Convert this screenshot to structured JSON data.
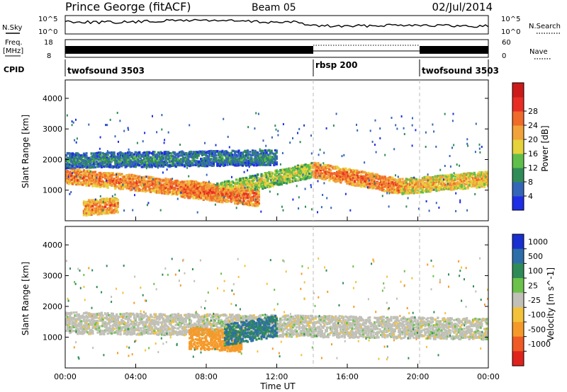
{
  "header": {
    "title": "Prince George (fitACF)",
    "beam": "Beam 05",
    "date": "02/Jul/2014"
  },
  "summary_panels": {
    "nsky": {
      "left_label": "N.Sky",
      "right_label": "N.Search",
      "tick_top": "10^5",
      "tick_bottom": "10^0",
      "right_tick_top": "10^5",
      "right_tick_bottom": "10^0"
    },
    "freq": {
      "left_label_line1": "Freq.",
      "left_label_line2": "[MHz]",
      "right_label": "Nave",
      "tick_top": "18",
      "tick_bottom": "8",
      "right_tick_top": "60",
      "right_tick_bottom": "0"
    },
    "cpid": {
      "label": "CPID",
      "programs": [
        {
          "name": "twofsound 3503",
          "start_hour": 0
        },
        {
          "name": "rbsp 200",
          "start_hour": 14
        },
        {
          "name": "twofsound 3503",
          "start_hour": 20
        }
      ]
    }
  },
  "chart_data": [
    {
      "type": "heatmap",
      "panel": "power",
      "xlabel": "",
      "ylabel": "Slant Range [km]",
      "x_range_hours": [
        0,
        24
      ],
      "ylim": [
        0,
        4600
      ],
      "yticks": [
        "1000",
        "2000",
        "3000",
        "4000"
      ],
      "colorbar": {
        "label": "Power [dB]",
        "ticks": [
          "4",
          "8",
          "12",
          "16",
          "20",
          "24",
          "28"
        ],
        "colors": [
          "#1e2ee6",
          "#3366b8",
          "#2f8c57",
          "#5fbf4a",
          "#e6d23a",
          "#f2a23a",
          "#f06a2a",
          "#e82e24",
          "#cc1a1a"
        ]
      },
      "echo_bands": [
        {
          "start": 0.0,
          "end": 8.5,
          "range_from": 1500,
          "range_to": 1000,
          "value": 26
        },
        {
          "start": 8.5,
          "end": 14.0,
          "range_from": 1000,
          "range_to": 1700,
          "value": 18
        },
        {
          "start": 14.0,
          "end": 19.0,
          "range_from": 1700,
          "range_to": 1150,
          "value": 26
        },
        {
          "start": 19.0,
          "end": 24.0,
          "range_from": 1150,
          "range_to": 1400,
          "value": 22
        },
        {
          "start": 0.0,
          "end": 12.0,
          "range_from": 2000,
          "range_to": 2100,
          "value": 10
        },
        {
          "start": 6.5,
          "end": 11.0,
          "range_from": 1050,
          "range_to": 750,
          "value": 27
        },
        {
          "start": 1.0,
          "end": 3.0,
          "range_from": 450,
          "range_to": 550,
          "value": 25
        }
      ]
    },
    {
      "type": "heatmap",
      "panel": "velocity",
      "xlabel": "Time UT",
      "ylabel": "Slant Range [km]",
      "x_range_hours": [
        0,
        24
      ],
      "ylim": [
        0,
        4600
      ],
      "yticks": [
        "1000",
        "2000",
        "3000",
        "4000"
      ],
      "xticks": [
        "00:00",
        "04:00",
        "08:00",
        "12:00",
        "16:00",
        "20:00",
        "00:00"
      ],
      "colorbar": {
        "label": "Velocity [m s^-1]",
        "ticks": [
          "1000",
          "500",
          "100",
          "25",
          "-25",
          "-100",
          "-500",
          "-1000"
        ],
        "colors": [
          "#1a2fd0",
          "#2d6ea8",
          "#2e8b57",
          "#6cc24a",
          "#c0c0b8",
          "#f2c23a",
          "#f59a2a",
          "#f05a24",
          "#e0221c"
        ]
      },
      "echo_bands": [
        {
          "start": 0.0,
          "end": 24.0,
          "range_from": 1500,
          "range_to": 1300,
          "value": 0
        },
        {
          "start": 7.0,
          "end": 10.0,
          "range_from": 1000,
          "range_to": 900,
          "value": -400
        },
        {
          "start": 9.0,
          "end": 12.0,
          "range_from": 1100,
          "range_to": 1400,
          "value": 300
        }
      ]
    }
  ]
}
